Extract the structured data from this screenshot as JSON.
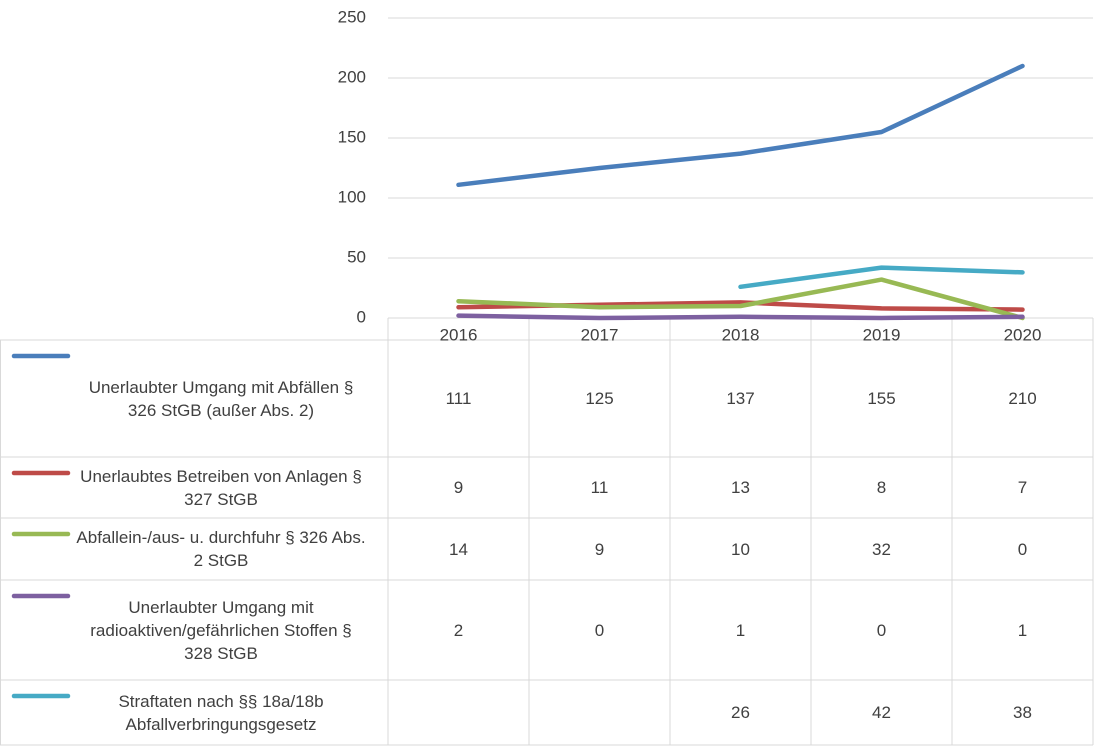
{
  "chart_data": {
    "type": "line",
    "categories": [
      "2016",
      "2017",
      "2018",
      "2019",
      "2020"
    ],
    "series": [
      {
        "name": "Unerlaubter Umgang mit Abfällen § 326 StGB (außer Abs. 2)",
        "color": "#4a7ebb",
        "values": [
          111,
          125,
          137,
          155,
          210
        ]
      },
      {
        "name": "Unerlaubtes Betreiben von Anlagen § 327 StGB",
        "color": "#be4b48",
        "values": [
          9,
          11,
          13,
          8,
          7
        ]
      },
      {
        "name": "Abfallein-/aus- u. durchfuhr § 326 Abs. 2 StGB",
        "color": "#98b954",
        "values": [
          14,
          9,
          10,
          32,
          0
        ]
      },
      {
        "name": "Unerlaubter Umgang mit radioaktiven/gefährlichen Stoffen § 328 StGB",
        "color": "#7d60a0",
        "values": [
          2,
          0,
          1,
          0,
          1
        ]
      },
      {
        "name": "Straftaten nach §§ 18a/18b Abfallverbringungsgesetz",
        "color": "#46aac5",
        "values": [
          null,
          null,
          26,
          42,
          38
        ]
      }
    ],
    "ylim": [
      0,
      250
    ],
    "yticks": [
      0,
      50,
      100,
      150,
      200,
      250
    ],
    "grid": true,
    "data_table": true
  }
}
